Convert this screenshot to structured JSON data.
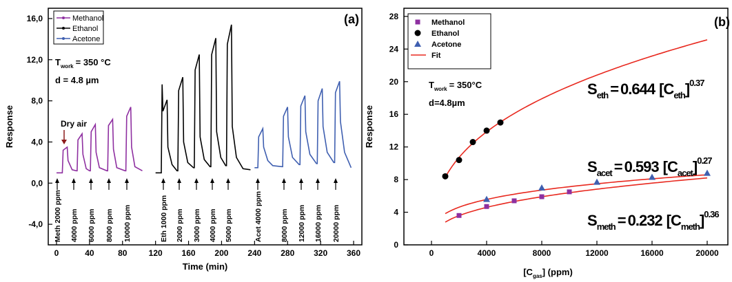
{
  "chart_data": [
    {
      "type": "line",
      "title": "(a)",
      "xlabel": "Time (min)",
      "ylabel": "Response",
      "xlim": [
        -10,
        370
      ],
      "ylim": [
        -6,
        17
      ],
      "xticks": [
        0,
        40,
        80,
        120,
        160,
        200,
        240,
        280,
        320,
        360
      ],
      "yticks": [
        {
          "value": 16,
          "label": "16,0"
        },
        {
          "value": 12,
          "label": "12,0"
        },
        {
          "value": 8,
          "label": "8,0"
        },
        {
          "value": 4,
          "label": "4,0"
        },
        {
          "value": 0,
          "label": "0,0"
        },
        {
          "value": -4,
          "label": "-4,0"
        }
      ],
      "legend": "upper left",
      "series": [
        {
          "name": "Methanol",
          "color": "#8e2fa0",
          "x": [
            0,
            7,
            8,
            13,
            14,
            19,
            24,
            25,
            26,
            31,
            32,
            36,
            40,
            41,
            42,
            47,
            48,
            52,
            61,
            62,
            63,
            68,
            69,
            73,
            83,
            84,
            85,
            90,
            91,
            95,
            104
          ],
          "values": [
            1.0,
            1.0,
            3.2,
            3.5,
            2.2,
            1.3,
            1.2,
            1.2,
            4.2,
            4.8,
            2.8,
            1.4,
            1.2,
            1.2,
            5.0,
            5.7,
            3.0,
            1.5,
            1.2,
            1.2,
            5.6,
            6.2,
            3.3,
            1.5,
            1.2,
            1.2,
            6.5,
            7.4,
            3.5,
            1.6,
            1.2
          ]
        },
        {
          "name": "Ethanol",
          "color": "#000000",
          "x": [
            120,
            127,
            128,
            129,
            134,
            135,
            140,
            146,
            147,
            148,
            153,
            154,
            159,
            166,
            167,
            168,
            173,
            174,
            179,
            186,
            187,
            188,
            193,
            194,
            199,
            205,
            206,
            207,
            212,
            213,
            218,
            226,
            235
          ],
          "values": [
            1.0,
            1.0,
            9.6,
            7.0,
            8.1,
            3.5,
            1.8,
            1.2,
            1.2,
            9.0,
            10.3,
            4.0,
            2.0,
            1.5,
            1.5,
            11.0,
            12.5,
            4.5,
            2.3,
            1.6,
            1.6,
            12.5,
            14.1,
            5.0,
            2.5,
            1.7,
            1.7,
            13.5,
            15.4,
            5.5,
            2.5,
            1.4,
            1.3
          ]
        },
        {
          "name": "Acetone",
          "color": "#3f5fb0",
          "x": [
            240,
            244,
            245,
            250,
            251,
            256,
            262,
            273,
            274,
            275,
            280,
            281,
            286,
            294,
            295,
            296,
            301,
            302,
            307,
            315,
            316,
            317,
            322,
            323,
            328,
            336,
            337,
            338,
            343,
            344,
            349,
            357
          ],
          "values": [
            1.5,
            1.5,
            4.5,
            5.3,
            3.5,
            2.2,
            1.7,
            1.6,
            1.6,
            6.5,
            7.4,
            4.5,
            2.5,
            1.8,
            1.8,
            7.5,
            8.5,
            5.0,
            2.8,
            1.9,
            1.9,
            8.0,
            9.2,
            5.5,
            3.0,
            2.0,
            2.0,
            8.8,
            9.9,
            6.0,
            3.0,
            1.5
          ]
        }
      ],
      "dose_labels": [
        [
          "Meth 2000 ppm",
          "4000 ppm",
          "6000 ppm",
          "8000 ppm",
          "10000 ppm"
        ],
        [
          "Eth 1000 ppm",
          "2000 ppm",
          "3000 ppm",
          "4000 ppm",
          "5000 ppm"
        ],
        [
          "Acet 4000 ppm",
          "8000 ppm",
          "12000 ppm",
          "16000 ppm",
          "20000 ppm"
        ]
      ],
      "dry_air": {
        "text": "Dry air",
        "color": "#8b1a1a"
      },
      "conditions": {
        "t": "T",
        "t_sub": "work",
        "t_rest": "= 350 °C",
        "d": "d = 4.8 µm"
      }
    },
    {
      "type": "scatter",
      "title": "(b)",
      "xlabel": [
        "[C",
        "gas",
        "] (ppm)"
      ],
      "ylabel": "Response",
      "xlim": [
        -2000,
        21500
      ],
      "ylim": [
        0,
        29
      ],
      "xticks": [
        0,
        4000,
        8000,
        12000,
        16000,
        20000
      ],
      "yticks": [
        0,
        4,
        8,
        12,
        16,
        20,
        24,
        28
      ],
      "legend": "upper left",
      "series": [
        {
          "name": "Methanol",
          "color": "#8e2fa0",
          "marker": "square",
          "x": [
            2000,
            4000,
            6000,
            8000,
            10000
          ],
          "values": [
            3.6,
            4.7,
            5.4,
            5.9,
            6.5
          ]
        },
        {
          "name": "Ethanol",
          "color": "#000000",
          "marker": "circle",
          "x": [
            1000,
            2000,
            3000,
            4000,
            5000
          ],
          "values": [
            8.4,
            10.4,
            12.6,
            14.0,
            15.0
          ]
        },
        {
          "name": "Acetone",
          "color": "#3f5fb0",
          "marker": "triangle",
          "x": [
            4000,
            8000,
            12000,
            16000,
            20000
          ],
          "values": [
            5.6,
            7.0,
            7.7,
            8.3,
            8.8
          ]
        }
      ],
      "fit": {
        "name": "Fit",
        "color": "#e8281e",
        "equations": [
          {
            "color": "#000000",
            "symbol": "S",
            "subscript": "eth",
            "equals": "=",
            "coefficient": 0.644,
            "bracket": "[C",
            "close": "]",
            "exponent": 0.37
          },
          {
            "color": "#3f5fb0",
            "symbol": "S",
            "subscript": "acet",
            "equals": "=",
            "coefficient": 0.593,
            "bracket": "[C",
            "close": "]",
            "exponent": 0.27
          },
          {
            "color": "#8e2fa0",
            "symbol": "S",
            "subscript": "meth",
            "equals": "=",
            "coefficient": 0.232,
            "bracket": "[C",
            "close": "]",
            "exponent": 0.36
          }
        ]
      },
      "conditions": {
        "t": "T",
        "t_sub": "work",
        "t_rest": "= 350°C",
        "d": "d=4.8µm"
      }
    }
  ]
}
